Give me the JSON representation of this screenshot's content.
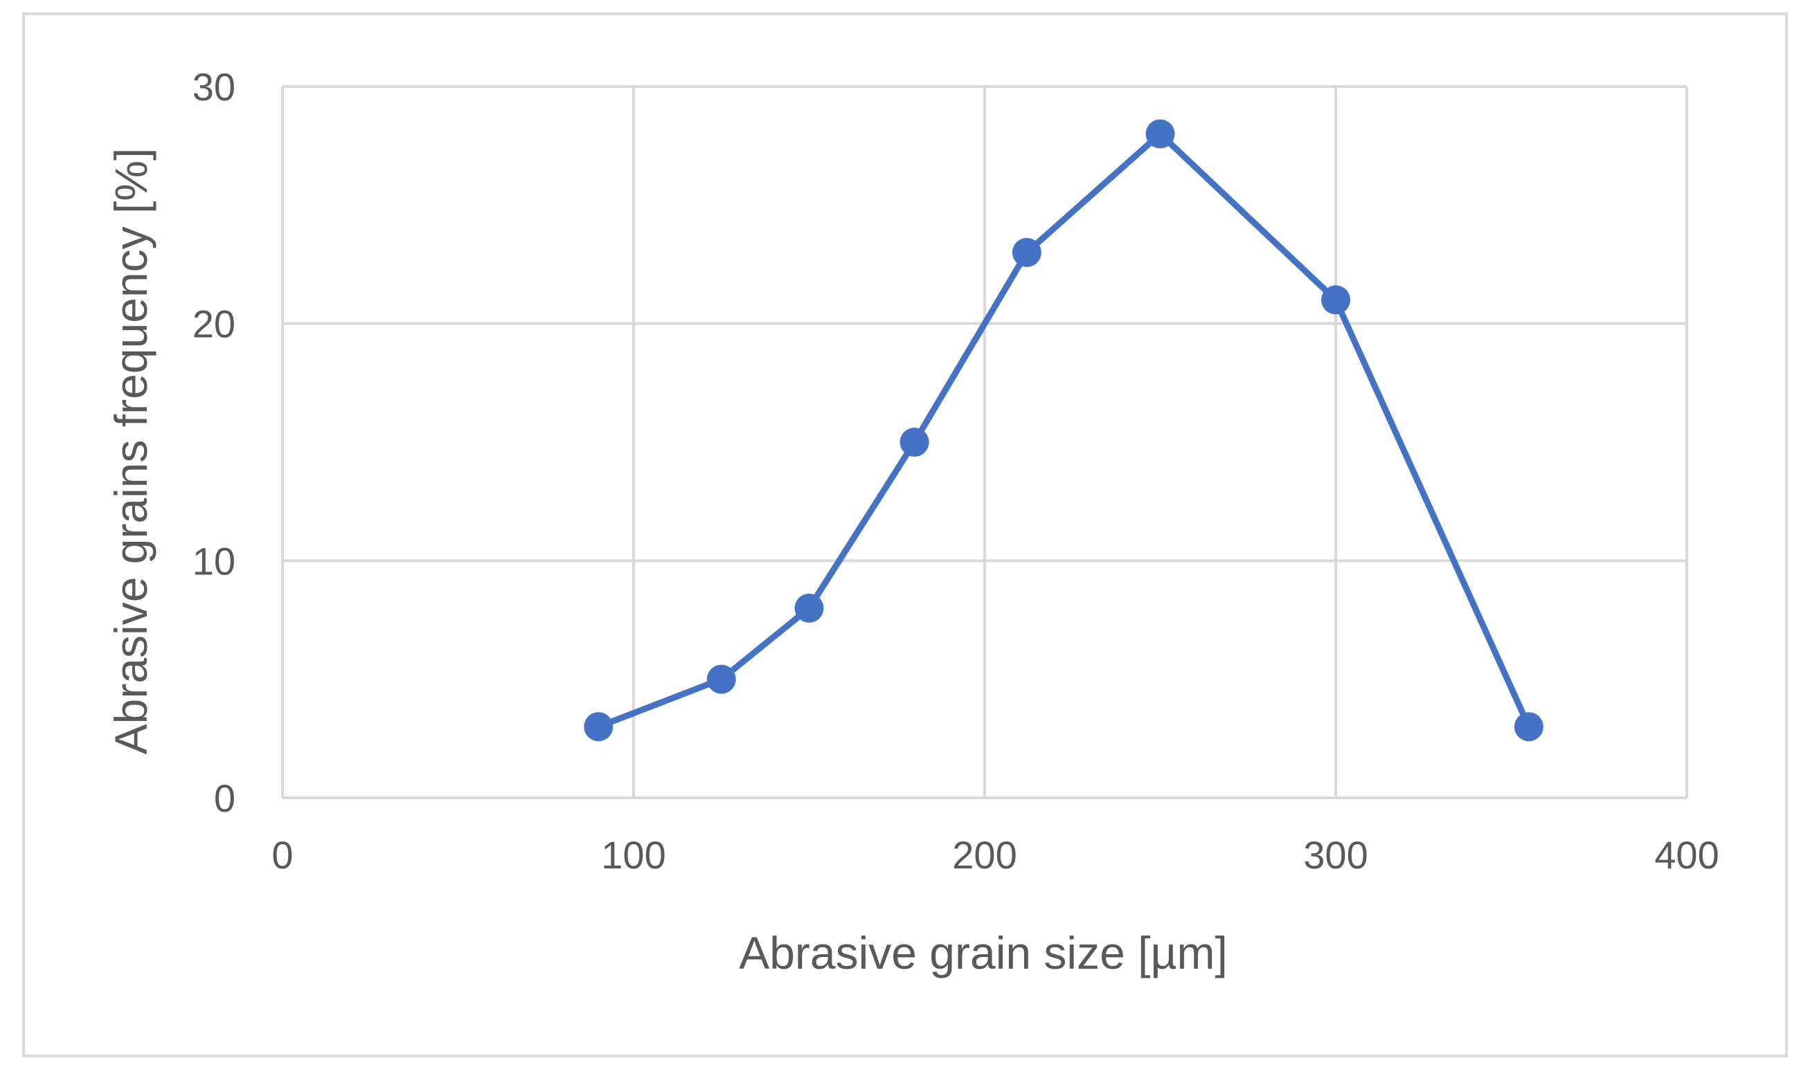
{
  "chart_data": {
    "type": "scatter",
    "title": "",
    "xlabel": "Abrasive grain size [µm]",
    "ylabel": "Abrasive grains frequency [%]",
    "xlim": [
      0,
      400
    ],
    "ylim": [
      0,
      30
    ],
    "x_ticks": [
      "0",
      "100",
      "200",
      "300",
      "400"
    ],
    "y_ticks": [
      "0",
      "10",
      "20",
      "30"
    ],
    "grid": true,
    "legend": "none",
    "series": [
      {
        "x": [
          90,
          125,
          150,
          180,
          212,
          250,
          300,
          355
        ],
        "y": [
          3,
          5,
          8,
          15,
          23,
          28,
          21,
          3
        ],
        "color": "#4472c4",
        "lines": true,
        "markers": true
      }
    ]
  }
}
